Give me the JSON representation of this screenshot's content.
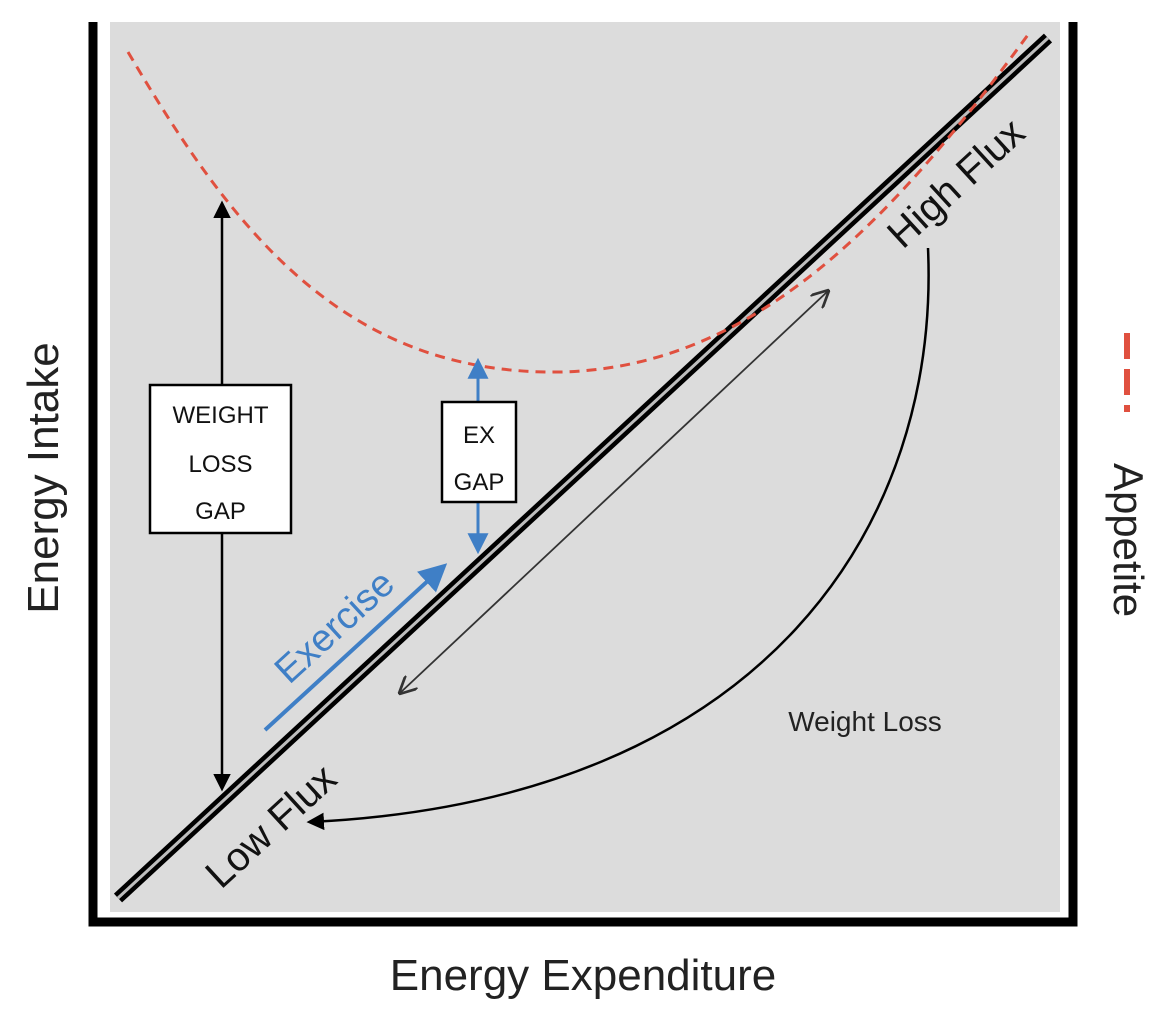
{
  "axes": {
    "x_label": "Energy Expenditure",
    "y_label": "Energy Intake"
  },
  "legend": {
    "appetite_label": "Appetite",
    "appetite_color": "#e0503f"
  },
  "boxes": {
    "weight_loss_gap": [
      "WEIGHT",
      "LOSS",
      "GAP"
    ],
    "ex_gap": [
      "EX",
      "GAP"
    ]
  },
  "labels": {
    "exercise": "Exercise",
    "high_flux": "High Flux",
    "low_flux": "Low Flux",
    "weight_loss": "Weight Loss"
  },
  "colors": {
    "background_panel": "#dcdcdc",
    "exercise_blue": "#3f7fc6",
    "axis": "#000000"
  }
}
